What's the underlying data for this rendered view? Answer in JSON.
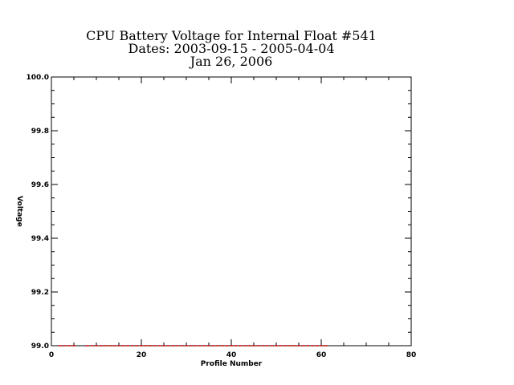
{
  "title": {
    "line1": "CPU Battery Voltage for Internal Float #541",
    "line2": "Dates:  2003-09-15 -  2005-04-04",
    "line3": "Jan 26, 2006"
  },
  "chart_data": {
    "type": "scatter",
    "xlabel": "Profile Number",
    "ylabel": "Voltage",
    "xlim": [
      0,
      80
    ],
    "ylim": [
      99.0,
      100.0
    ],
    "x_major_ticks": [
      0,
      20,
      40,
      60,
      80
    ],
    "x_tick_labels": [
      "0",
      "20",
      "40",
      "60",
      "80"
    ],
    "y_major_ticks": [
      99.0,
      99.2,
      99.4,
      99.6,
      99.8,
      100.0
    ],
    "y_tick_labels": [
      "99.0",
      "99.2",
      "99.4",
      "99.6",
      "99.8",
      "100.0"
    ],
    "grid": false,
    "marker_color": "#cc0000",
    "series": [
      {
        "x": [
          2,
          3,
          4,
          5,
          8,
          9,
          10,
          11,
          12,
          13,
          14,
          15,
          16,
          17,
          18,
          19,
          20,
          21,
          22,
          23,
          24,
          25,
          26,
          27,
          28,
          29,
          30,
          31,
          32,
          33,
          34,
          35,
          36,
          37,
          38,
          39,
          40,
          41,
          42,
          43,
          44,
          45,
          46,
          47,
          48,
          49,
          50,
          51,
          52,
          53,
          54,
          55,
          56,
          57,
          58,
          59,
          60,
          61
        ],
        "y": [
          99.0,
          99.0,
          99.0,
          99.0,
          99.0,
          99.0,
          99.0,
          99.0,
          99.0,
          99.0,
          99.0,
          99.0,
          99.0,
          99.0,
          99.0,
          99.0,
          99.0,
          99.0,
          99.0,
          99.0,
          99.0,
          99.0,
          99.0,
          99.0,
          99.0,
          99.0,
          99.0,
          99.0,
          99.0,
          99.0,
          99.0,
          99.0,
          99.0,
          99.0,
          99.0,
          99.0,
          99.0,
          99.0,
          99.0,
          99.0,
          99.0,
          99.0,
          99.0,
          99.0,
          99.0,
          99.0,
          99.0,
          99.0,
          99.0,
          99.0,
          99.0,
          99.0,
          99.0,
          99.0,
          99.0,
          99.0,
          99.0,
          99.0
        ]
      }
    ]
  }
}
